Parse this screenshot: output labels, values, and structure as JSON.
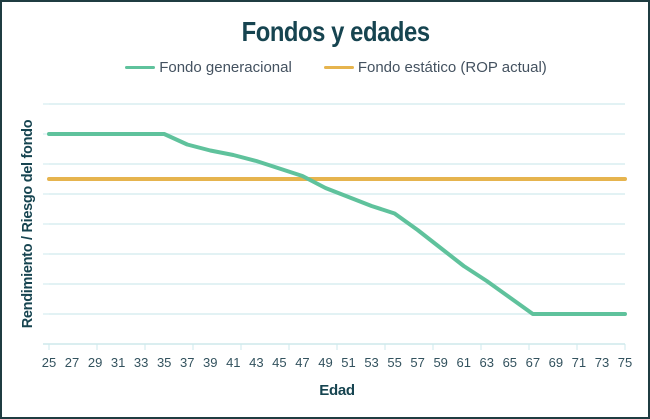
{
  "title": "Fondos y edades",
  "legend": {
    "items": [
      {
        "label": "Fondo generacional",
        "color": "#5fc29c"
      },
      {
        "label": "Fondo estático (ROP actual)",
        "color": "#e6b44e"
      }
    ]
  },
  "axes": {
    "x_title": "Edad",
    "y_title": "Rendimiento / Riesgo del fondo"
  },
  "chart_data": {
    "type": "line",
    "title": "Fondos y edades",
    "xlabel": "Edad",
    "ylabel": "Rendimiento / Riesgo del fondo",
    "x": [
      25,
      27,
      29,
      31,
      33,
      35,
      37,
      39,
      41,
      43,
      45,
      47,
      49,
      51,
      53,
      55,
      57,
      59,
      61,
      63,
      65,
      67,
      69,
      71,
      73,
      75
    ],
    "series": [
      {
        "name": "Fondo generacional",
        "color": "#5fc29c",
        "values": [
          7,
          7,
          7,
          7,
          7,
          7,
          6.65,
          6.45,
          6.3,
          6.1,
          5.85,
          5.6,
          5.2,
          4.9,
          4.6,
          4.35,
          3.8,
          3.2,
          2.6,
          2.1,
          1.55,
          1,
          1,
          1,
          1,
          1
        ]
      },
      {
        "name": "Fondo estático (ROP actual)",
        "color": "#e6b44e",
        "values": [
          5.5,
          5.5,
          5.5,
          5.5,
          5.5,
          5.5,
          5.5,
          5.5,
          5.5,
          5.5,
          5.5,
          5.5,
          5.5,
          5.5,
          5.5,
          5.5,
          5.5,
          5.5,
          5.5,
          5.5,
          5.5,
          5.5,
          5.5,
          5.5,
          5.5,
          5.5
        ]
      }
    ],
    "ylim": [
      0,
      8
    ],
    "horizontal_gridline_values": [
      1,
      2,
      3,
      4,
      5,
      6,
      7,
      8
    ],
    "y_axis_numeric_labels_shown": false,
    "grid": "horizontal",
    "legend_position": "top"
  },
  "colors": {
    "title_text": "#164450",
    "axis_text": "#33525e",
    "legend_text": "#445260",
    "gridline": "#d8eef0",
    "axis_line": "#cde9ec",
    "frame_border": "#1f3c41",
    "background": "#ffffff"
  }
}
